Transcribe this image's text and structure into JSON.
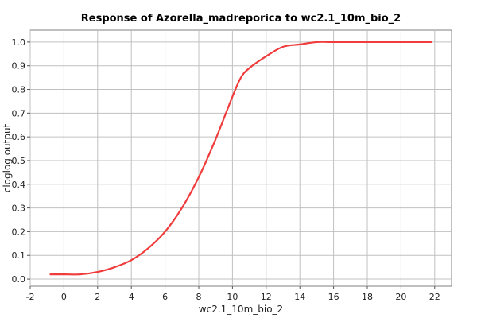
{
  "chart_data": {
    "type": "line",
    "title": "Response of Azorella_madreporica to wc2.1_10m_bio_2",
    "xlabel": "wc2.1_10m_bio_2",
    "ylabel": "cloglog output",
    "xlim": [
      -2,
      23
    ],
    "ylim": [
      -0.03,
      1.05
    ],
    "xticks": [
      -2,
      0,
      2,
      4,
      6,
      8,
      10,
      12,
      14,
      16,
      18,
      20,
      22
    ],
    "yticks": [
      0.0,
      0.1,
      0.2,
      0.3,
      0.4,
      0.5,
      0.6,
      0.7,
      0.8,
      0.9,
      1.0
    ],
    "grid": true,
    "series": [
      {
        "color": "#f03c3c",
        "x": [
          -0.8,
          0,
          1,
          2,
          3,
          4,
          5,
          6,
          7,
          8,
          9,
          10,
          10.5,
          11,
          12,
          13,
          14,
          15,
          16,
          18,
          20,
          21.8
        ],
        "y": [
          0.02,
          0.02,
          0.02,
          0.03,
          0.05,
          0.08,
          0.13,
          0.2,
          0.3,
          0.43,
          0.59,
          0.77,
          0.85,
          0.89,
          0.94,
          0.98,
          0.99,
          1.0,
          1.0,
          1.0,
          1.0,
          1.0
        ]
      }
    ]
  }
}
